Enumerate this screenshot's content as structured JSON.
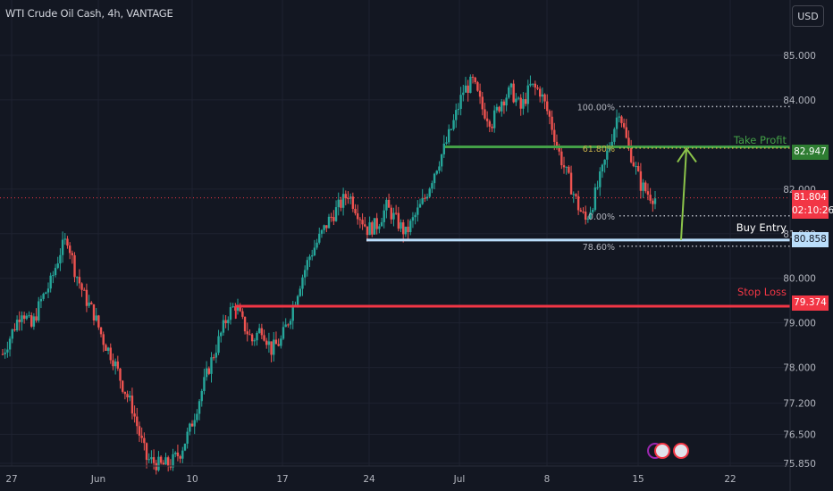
{
  "header": {
    "title": "WTI Crude Oil Cash, 4h, VANTAGE",
    "currency": "USD"
  },
  "colors": {
    "background": "#131722",
    "grid": "#1e2230",
    "axis_text": "#b2b5be",
    "up": "#26a69a",
    "down": "#ef5350",
    "take_profit": "#43a047",
    "stop_loss": "#f23645",
    "buy_entry": "#bbdefb",
    "arrow": "#8bc34a",
    "fib_dots": "#b2b5be",
    "fib_618": "#c9b14a",
    "current_price": "#f23645"
  },
  "price_scale": {
    "ticks": [
      "85.000",
      "84.000",
      "82.000",
      "81.000",
      "80.000",
      "79.000",
      "78.000",
      "77.200",
      "76.500",
      "75.850"
    ],
    "tick_values": [
      85.0,
      84.0,
      82.0,
      81.0,
      80.0,
      79.0,
      78.0,
      77.2,
      76.5,
      75.85
    ]
  },
  "time_scale": {
    "labels": [
      "27",
      "Jun",
      "10",
      "17",
      "24",
      "Jul",
      "8",
      "15",
      "22"
    ]
  },
  "levels": {
    "take_profit": {
      "label": "Take Profit",
      "price_label": "82.947",
      "price": 82.947
    },
    "buy_entry": {
      "label": "Buy Entry",
      "price_label": "80.858",
      "price": 80.858
    },
    "stop_loss": {
      "label": "Stop Loss",
      "price_label": "79.374",
      "price": 79.374
    },
    "current": {
      "price_label": "81.804",
      "countdown": "02:10:26",
      "price": 81.804
    }
  },
  "fibonacci": [
    {
      "label": "100.00%"
    },
    {
      "label": "61.80%"
    },
    {
      "label": "0.00%"
    },
    {
      "label": "78.60%"
    }
  ],
  "chart_data": {
    "type": "candlestick",
    "title": "WTI Crude Oil Cash, 4h, VANTAGE",
    "x_tick_labels": [
      "27",
      "Jun",
      "10",
      "17",
      "24",
      "Jul",
      "8",
      "15",
      "22"
    ],
    "y_tick_labels": [
      "85.000",
      "84.000",
      "82.000",
      "81.000",
      "80.000",
      "79.000",
      "78.000",
      "77.200",
      "76.500",
      "75.850"
    ],
    "ylim": [
      75.75,
      85.6
    ],
    "grid": true,
    "series_path": [
      [
        0,
        78.3
      ],
      [
        4,
        78.8
      ],
      [
        8,
        79.3
      ],
      [
        12,
        78.9
      ],
      [
        16,
        79.5
      ],
      [
        20,
        79.9
      ],
      [
        24,
        80.6
      ],
      [
        27,
        80.9
      ],
      [
        30,
        80.2
      ],
      [
        34,
        79.6
      ],
      [
        38,
        79.2
      ],
      [
        42,
        78.6
      ],
      [
        46,
        78.2
      ],
      [
        50,
        77.6
      ],
      [
        54,
        77.1
      ],
      [
        57,
        76.5
      ],
      [
        60,
        75.95
      ],
      [
        66,
        75.8
      ],
      [
        70,
        75.85
      ],
      [
        74,
        76.1
      ],
      [
        78,
        76.6
      ],
      [
        82,
        77.3
      ],
      [
        86,
        78.0
      ],
      [
        90,
        78.6
      ],
      [
        94,
        79.2
      ],
      [
        97,
        79.4
      ],
      [
        100,
        79.0
      ],
      [
        104,
        78.6
      ],
      [
        108,
        78.9
      ],
      [
        112,
        78.4
      ],
      [
        116,
        78.6
      ],
      [
        120,
        79.2
      ],
      [
        124,
        79.9
      ],
      [
        128,
        80.5
      ],
      [
        132,
        80.9
      ],
      [
        136,
        81.3
      ],
      [
        140,
        81.6
      ],
      [
        144,
        81.9
      ],
      [
        148,
        81.5
      ],
      [
        152,
        81.1
      ],
      [
        156,
        81.2
      ],
      [
        160,
        81.6
      ],
      [
        164,
        81.3
      ],
      [
        168,
        81.0
      ],
      [
        172,
        81.4
      ],
      [
        176,
        81.8
      ],
      [
        180,
        82.4
      ],
      [
        184,
        82.9
      ],
      [
        188,
        83.5
      ],
      [
        192,
        84.2
      ],
      [
        196,
        84.4
      ],
      [
        200,
        83.8
      ],
      [
        204,
        83.5
      ],
      [
        208,
        84.0
      ],
      [
        212,
        84.2
      ],
      [
        216,
        83.8
      ],
      [
        220,
        84.3
      ],
      [
        224,
        84.2
      ],
      [
        228,
        83.6
      ],
      [
        232,
        82.8
      ],
      [
        236,
        82.2
      ],
      [
        240,
        81.6
      ],
      [
        243,
        81.3
      ],
      [
        246,
        81.7
      ],
      [
        250,
        82.4
      ],
      [
        254,
        83.2
      ],
      [
        257,
        83.8
      ],
      [
        260,
        83.1
      ],
      [
        263,
        82.6
      ],
      [
        266,
        82.1
      ],
      [
        269,
        81.9
      ],
      [
        272,
        81.8
      ]
    ],
    "seed": 7,
    "levels": [
      {
        "name": "Take Profit",
        "value": 82.947,
        "color": "#43a047"
      },
      {
        "name": "Buy Entry",
        "value": 80.858,
        "color": "#bbdefb"
      },
      {
        "name": "Stop Loss",
        "value": 79.374,
        "color": "#f23645"
      }
    ],
    "current_price": 81.804,
    "fibonacci": [
      {
        "label": "100.00%",
        "value": 83.85
      },
      {
        "label": "61.80%",
        "value": 82.92
      },
      {
        "label": "0.00%",
        "value": 81.4
      },
      {
        "label": "78.60%",
        "value": 80.72
      }
    ]
  }
}
